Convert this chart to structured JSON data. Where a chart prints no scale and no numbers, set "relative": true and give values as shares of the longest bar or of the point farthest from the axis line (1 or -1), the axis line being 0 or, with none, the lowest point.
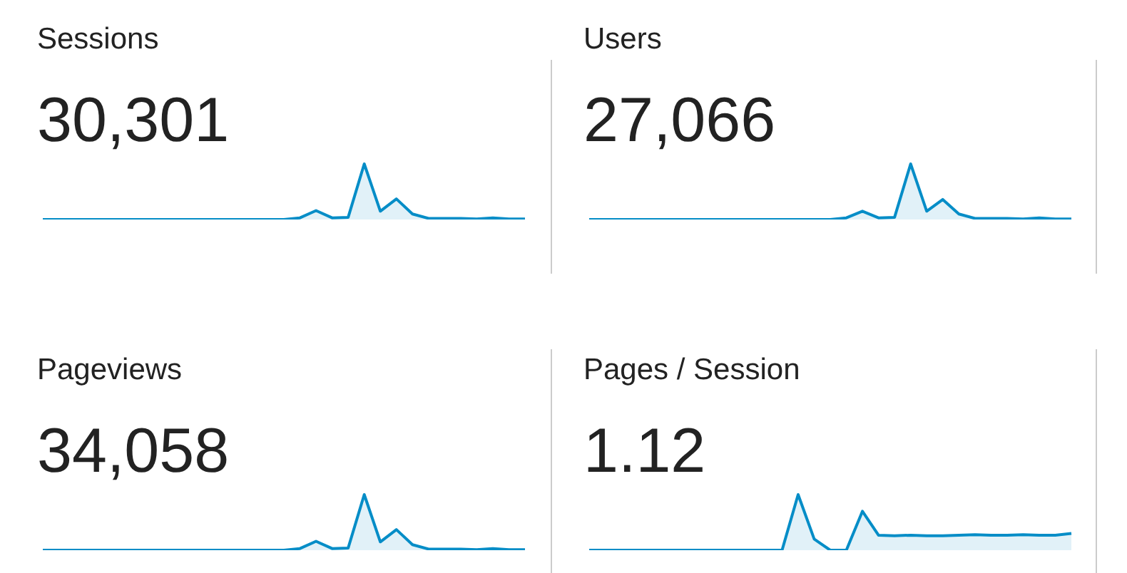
{
  "chart_data": [
    {
      "type": "area",
      "title": "Sessions",
      "subtitle": "30,301",
      "relative": true,
      "color": "#058dc7",
      "categories": [
        null,
        null,
        null,
        null,
        null,
        null,
        null,
        null,
        null,
        null,
        null,
        null,
        null,
        null,
        null,
        null,
        null,
        null,
        null,
        null,
        null,
        null,
        null,
        null,
        null,
        null,
        null,
        null,
        null,
        null,
        null
      ],
      "values": [
        0,
        0,
        0,
        0,
        0,
        0,
        0,
        0,
        0,
        0,
        0,
        0,
        0,
        0,
        0,
        0,
        0.03,
        0.16,
        0.03,
        0.04,
        1,
        0.15,
        0.37,
        0.1,
        0.02,
        0.02,
        0.02,
        0.01,
        0.03,
        0.01,
        0.01
      ]
    },
    {
      "type": "area",
      "title": "Users",
      "subtitle": "27,066",
      "relative": true,
      "color": "#058dc7",
      "categories": [
        null,
        null,
        null,
        null,
        null,
        null,
        null,
        null,
        null,
        null,
        null,
        null,
        null,
        null,
        null,
        null,
        null,
        null,
        null,
        null,
        null,
        null,
        null,
        null,
        null,
        null,
        null,
        null,
        null,
        null,
        null
      ],
      "values": [
        0,
        0,
        0,
        0,
        0,
        0,
        0,
        0,
        0,
        0,
        0,
        0,
        0,
        0,
        0,
        0,
        0.03,
        0.15,
        0.03,
        0.04,
        1,
        0.15,
        0.36,
        0.1,
        0.02,
        0.02,
        0.02,
        0.01,
        0.03,
        0.01,
        0.01
      ]
    },
    {
      "type": "area",
      "title": "Pageviews",
      "subtitle": "34,058",
      "relative": true,
      "color": "#058dc7",
      "categories": [
        null,
        null,
        null,
        null,
        null,
        null,
        null,
        null,
        null,
        null,
        null,
        null,
        null,
        null,
        null,
        null,
        null,
        null,
        null,
        null,
        null,
        null,
        null,
        null,
        null,
        null,
        null,
        null,
        null,
        null,
        null
      ],
      "values": [
        0,
        0,
        0,
        0,
        0,
        0,
        0,
        0,
        0,
        0,
        0,
        0,
        0,
        0,
        0,
        0,
        0.03,
        0.16,
        0.03,
        0.04,
        1,
        0.15,
        0.37,
        0.1,
        0.02,
        0.02,
        0.02,
        0.01,
        0.03,
        0.01,
        0.01
      ]
    },
    {
      "type": "area",
      "title": "Pages / Session",
      "subtitle": "1.12",
      "relative": true,
      "color": "#058dc7",
      "categories": [
        null,
        null,
        null,
        null,
        null,
        null,
        null,
        null,
        null,
        null,
        null,
        null,
        null,
        null,
        null,
        null,
        null,
        null,
        null,
        null,
        null,
        null,
        null,
        null,
        null,
        null,
        null,
        null,
        null,
        null,
        null
      ],
      "values": [
        0,
        0,
        0,
        0,
        0,
        0,
        0,
        0,
        0,
        0,
        0,
        0,
        0,
        1,
        0.2,
        0,
        0,
        0.7,
        0.27,
        0.26,
        0.27,
        0.26,
        0.26,
        0.27,
        0.28,
        0.27,
        0.27,
        0.28,
        0.27,
        0.27,
        0.3
      ]
    }
  ]
}
